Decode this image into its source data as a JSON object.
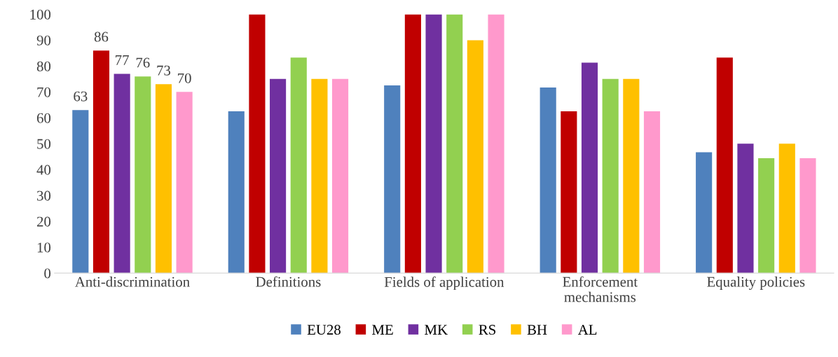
{
  "chart_data": {
    "type": "bar",
    "categories": [
      "Anti-discrimination",
      "Definitions",
      "Fields of application",
      "Enforcement mechanisms",
      "Equality policies"
    ],
    "series": [
      {
        "name": "EU28",
        "color": "#4f81bd",
        "values": [
          63,
          62.5,
          72.5,
          71.7,
          46.7
        ],
        "value_labels": [
          "63",
          null,
          null,
          null,
          null
        ]
      },
      {
        "name": "ME",
        "color": "#c00000",
        "values": [
          86,
          100,
          100,
          62.5,
          83.3
        ],
        "value_labels": [
          "86",
          null,
          null,
          null,
          null
        ]
      },
      {
        "name": "MK",
        "color": "#7030a0",
        "values": [
          77,
          75,
          100,
          81.3,
          50
        ],
        "value_labels": [
          "77",
          null,
          null,
          null,
          null
        ]
      },
      {
        "name": "RS",
        "color": "#92d050",
        "values": [
          76,
          83.3,
          100,
          75,
          44.4
        ],
        "value_labels": [
          "76",
          null,
          null,
          null,
          null
        ]
      },
      {
        "name": "BH",
        "color": "#ffc000",
        "values": [
          73,
          75,
          90,
          75,
          50
        ],
        "value_labels": [
          "73",
          null,
          null,
          null,
          null
        ]
      },
      {
        "name": "AL",
        "color": "#ff99cc",
        "values": [
          70,
          75,
          100,
          62.5,
          44.4
        ],
        "value_labels": [
          "70",
          null,
          null,
          null,
          null
        ]
      }
    ],
    "ylim": [
      0,
      100
    ],
    "yticks": [
      0,
      10,
      20,
      30,
      40,
      50,
      60,
      70,
      80,
      90,
      100
    ],
    "grid": false,
    "legend": "bottom"
  }
}
